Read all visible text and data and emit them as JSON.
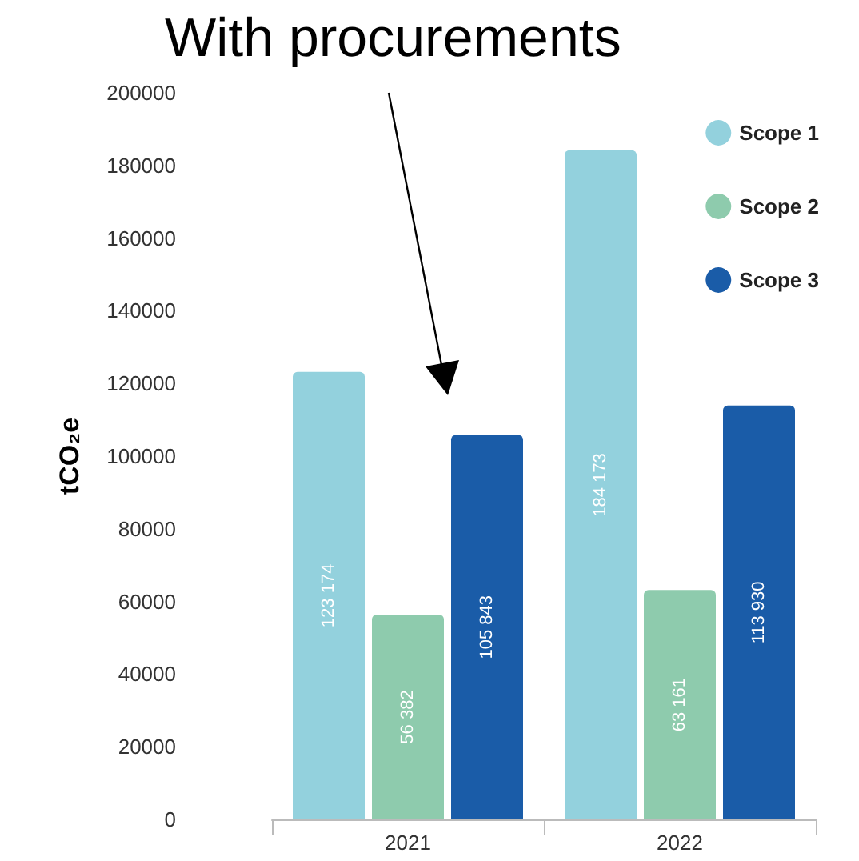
{
  "chart_data": {
    "type": "bar",
    "title": "With procurements",
    "ylabel": "tCO₂e",
    "categories": [
      "2021",
      "2022"
    ],
    "series": [
      {
        "name": "Scope 1",
        "color": "#93d1dd",
        "values": [
          123174,
          184173
        ],
        "value_labels": [
          "123 174",
          "184 173"
        ]
      },
      {
        "name": "Scope 2",
        "color": "#8ecbad",
        "values": [
          56382,
          63161
        ],
        "value_labels": [
          "56 382",
          "63 161"
        ]
      },
      {
        "name": "Scope 3",
        "color": "#1a5ca8",
        "values": [
          105843,
          113930
        ],
        "value_labels": [
          "105 843",
          "113 930"
        ]
      }
    ],
    "ylim": [
      0,
      200000
    ],
    "yticks": [
      0,
      20000,
      40000,
      60000,
      80000,
      100000,
      120000,
      140000,
      160000,
      180000,
      200000
    ],
    "grid": false,
    "legend": "top right"
  }
}
